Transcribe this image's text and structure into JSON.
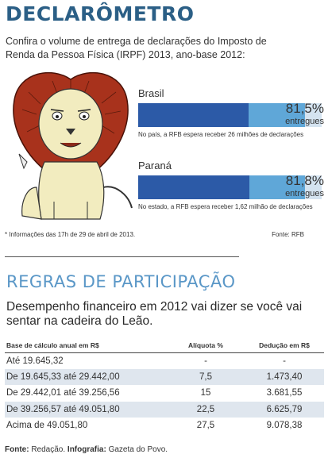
{
  "header": {
    "title": "DECLARÔMETRO",
    "subtitle": "Confira o volume de entrega de declarações do Imposto de Renda da Pessoa Física (IRPF) 2013, ano-base 2012:"
  },
  "colors": {
    "bar_fill": "#2c5aa7",
    "bar_rest": "#5fa7d8",
    "title": "#2b5f86",
    "section": "#5a97c7",
    "row_alt": "#dfe6ee"
  },
  "chart_data": {
    "type": "bar",
    "categories": [
      "Brasil",
      "Paraná"
    ],
    "values": [
      81.5,
      81.8
    ],
    "value_labels": [
      "81,5%",
      "81,8%"
    ],
    "unit_label": "entregues",
    "notes": [
      "No país, a RFB espera receber 26 milhões de declarações",
      "No estado, a RFB espera receber 1,62 milhão de declarações"
    ],
    "ylim": [
      0,
      100
    ]
  },
  "footnote": "* Informações das 17h de 29 de abril de 2013.",
  "source": "Fonte: RFB",
  "section": {
    "title": "REGRAS DE PARTICIPAÇÃO",
    "description": "Desempenho financeiro em 2012 vai dizer se você vai sentar na cadeira do Leão."
  },
  "table": {
    "headers": [
      "Base de cálculo anual em R$",
      "Alíquota %",
      "Dedução em R$"
    ],
    "rows": [
      [
        "Até 19.645,32",
        "-",
        "-"
      ],
      [
        "De 19.645,33 até 29.442,00",
        "7,5",
        "1.473,40"
      ],
      [
        "De 29.442,01 até 39.256,56",
        "15",
        "3.681,55"
      ],
      [
        "De 39.256,57 até 49.051,80",
        "22,5",
        "6.625,79"
      ],
      [
        "Acima de 49.051,80",
        "27,5",
        "9.078,38"
      ]
    ]
  },
  "credits": {
    "fonte_label": "Fonte:",
    "fonte_value": " Redação. ",
    "infografia_label": "Infografia:",
    "infografia_value": " Gazeta do Povo."
  }
}
